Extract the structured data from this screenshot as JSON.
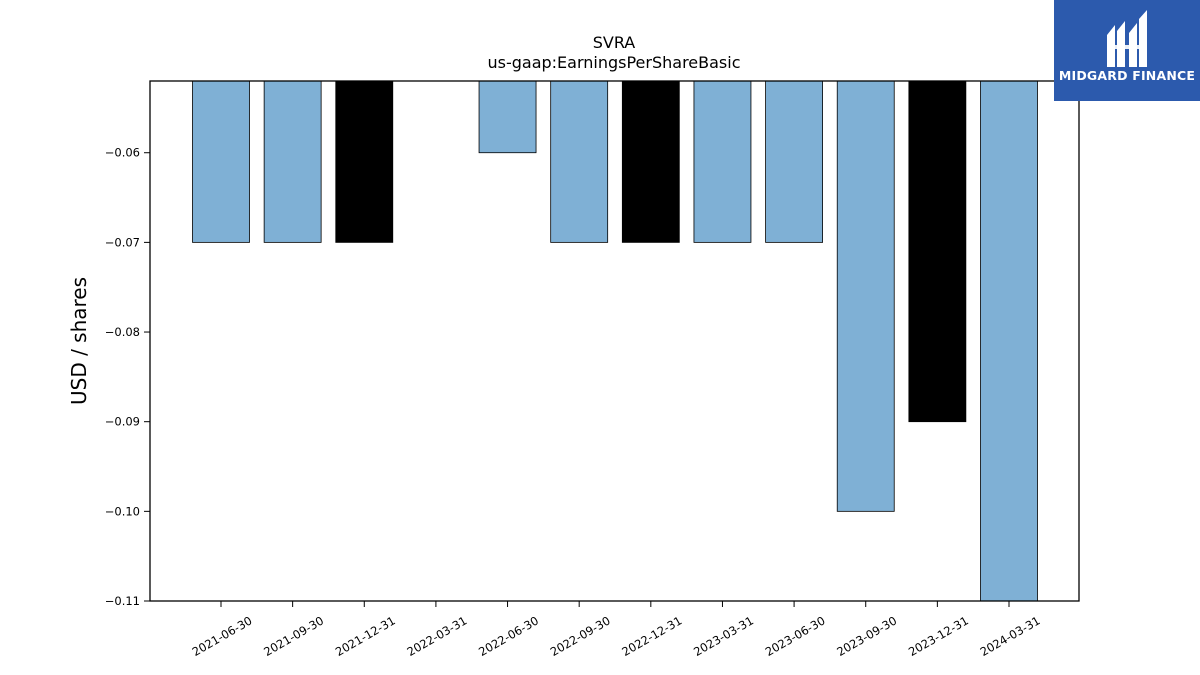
{
  "chart_data": {
    "type": "bar",
    "title": "SVRA",
    "subtitle": "us-gaap:EarningsPerShareBasic",
    "xlabel": "",
    "ylabel": "USD / shares",
    "ylim": [
      -0.11,
      -0.052
    ],
    "yticks": [
      -0.06,
      -0.07,
      -0.08,
      -0.09,
      -0.1,
      -0.11
    ],
    "ytick_labels": [
      "−0.06",
      "−0.07",
      "−0.08",
      "−0.09",
      "−0.10",
      "−0.11"
    ],
    "categories": [
      "2021-06-30",
      "2021-09-30",
      "2021-12-31",
      "2022-03-31",
      "2022-06-30",
      "2022-09-30",
      "2022-12-31",
      "2023-03-31",
      "2023-06-30",
      "2023-09-30",
      "2023-12-31",
      "2024-03-31"
    ],
    "values": [
      -0.07,
      -0.07,
      -0.07,
      null,
      -0.06,
      -0.07,
      -0.07,
      -0.07,
      -0.07,
      -0.1,
      -0.09,
      -0.11
    ],
    "bar_colors": [
      "#7fb0d5",
      "#7fb0d5",
      "#000000",
      null,
      "#7fb0d5",
      "#7fb0d5",
      "#000000",
      "#7fb0d5",
      "#7fb0d5",
      "#7fb0d5",
      "#000000",
      "#7fb0d5"
    ],
    "grid": false,
    "legend": "none"
  },
  "logo": {
    "text": "MIDGARD FINANCE",
    "background": "#2c5aad"
  }
}
